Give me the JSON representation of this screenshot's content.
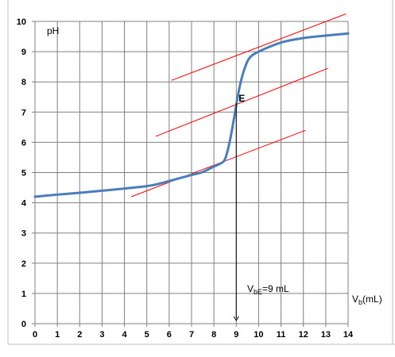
{
  "chart_data": {
    "type": "line",
    "title": "",
    "ylabel": "pH",
    "xlabel": {
      "main": "V",
      "sub": "b",
      "suffix": "(mL)"
    },
    "xlim": [
      0,
      14
    ],
    "ylim": [
      0,
      10
    ],
    "x_ticks": [
      "0",
      "1",
      "2",
      "3",
      "4",
      "5",
      "6",
      "7",
      "8",
      "9",
      "10",
      "11",
      "12",
      "13",
      "14"
    ],
    "y_ticks": [
      "0",
      "1",
      "2",
      "3",
      "4",
      "5",
      "6",
      "7",
      "8",
      "9",
      "10"
    ],
    "grid": true,
    "series": [
      {
        "color": "#4a7ebb",
        "points": [
          [
            0,
            4.2
          ],
          [
            1,
            4.27
          ],
          [
            2,
            4.33
          ],
          [
            3,
            4.4
          ],
          [
            4,
            4.47
          ],
          [
            5,
            4.55
          ],
          [
            5.5,
            4.62
          ],
          [
            6,
            4.72
          ],
          [
            6.5,
            4.82
          ],
          [
            7,
            4.92
          ],
          [
            7.5,
            5.02
          ],
          [
            8,
            5.2
          ],
          [
            8.3,
            5.3
          ],
          [
            8.5,
            5.45
          ],
          [
            8.7,
            6.0
          ],
          [
            8.9,
            6.8
          ],
          [
            9.05,
            7.45
          ],
          [
            9.2,
            8.0
          ],
          [
            9.4,
            8.5
          ],
          [
            9.6,
            8.8
          ],
          [
            10,
            9.0
          ],
          [
            11,
            9.3
          ],
          [
            12,
            9.45
          ],
          [
            13,
            9.53
          ],
          [
            14,
            9.6
          ]
        ]
      }
    ],
    "tangent_lines": {
      "color": "#ff0000",
      "lines": [
        {
          "x1": 4.3,
          "y1": 4.2,
          "x2": 12.1,
          "y2": 6.4
        },
        {
          "x1": 5.4,
          "y1": 6.2,
          "x2": 13.1,
          "y2": 8.45
        },
        {
          "x1": 6.1,
          "y1": 8.05,
          "x2": 13.9,
          "y2": 10.25
        }
      ]
    },
    "equivalence": {
      "point_label": "E",
      "x": 9,
      "y": 7.3,
      "arrow_color": "#000000",
      "volume_label": {
        "main": "V",
        "sub": "bE",
        "suffix": "=9 mL"
      }
    }
  }
}
